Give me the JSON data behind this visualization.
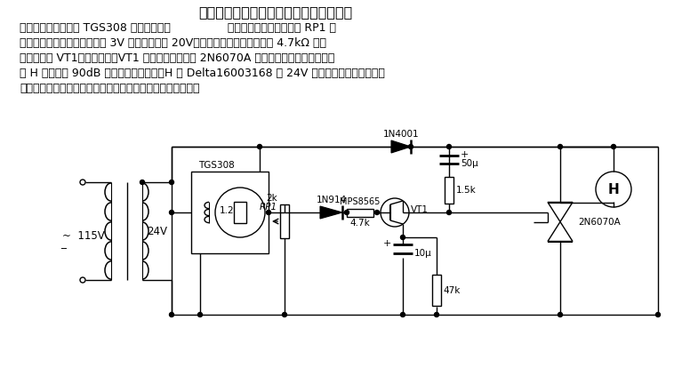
{
  "title": "采用双向晶闸管的气体、烟雾报警器电路",
  "line1": "在出现可燃性气体时 TGS308 型气体传感器                的电导增加，通过电位器 RP1 滑",
  "line2": "动点取出电压，其值从正常的 3V 有效值增加到 20V。此升高的电压经二极管和 4.7kΩ 电阻",
  "line3": "加至晶体管 VT1，使之导通，VT1 导通使双向晶闸管 2N6070A 导通。由此全波交流电压驱",
  "line4": "动 H 产生高达 90dB 的声音，实现报警。H 为 Delta16003168 型 24V 交流报警器。当气体从传",
  "line5": "感器消失掉以后，电路恢复到原始状态，于是报警自动停止。",
  "bg_color": "#ffffff"
}
